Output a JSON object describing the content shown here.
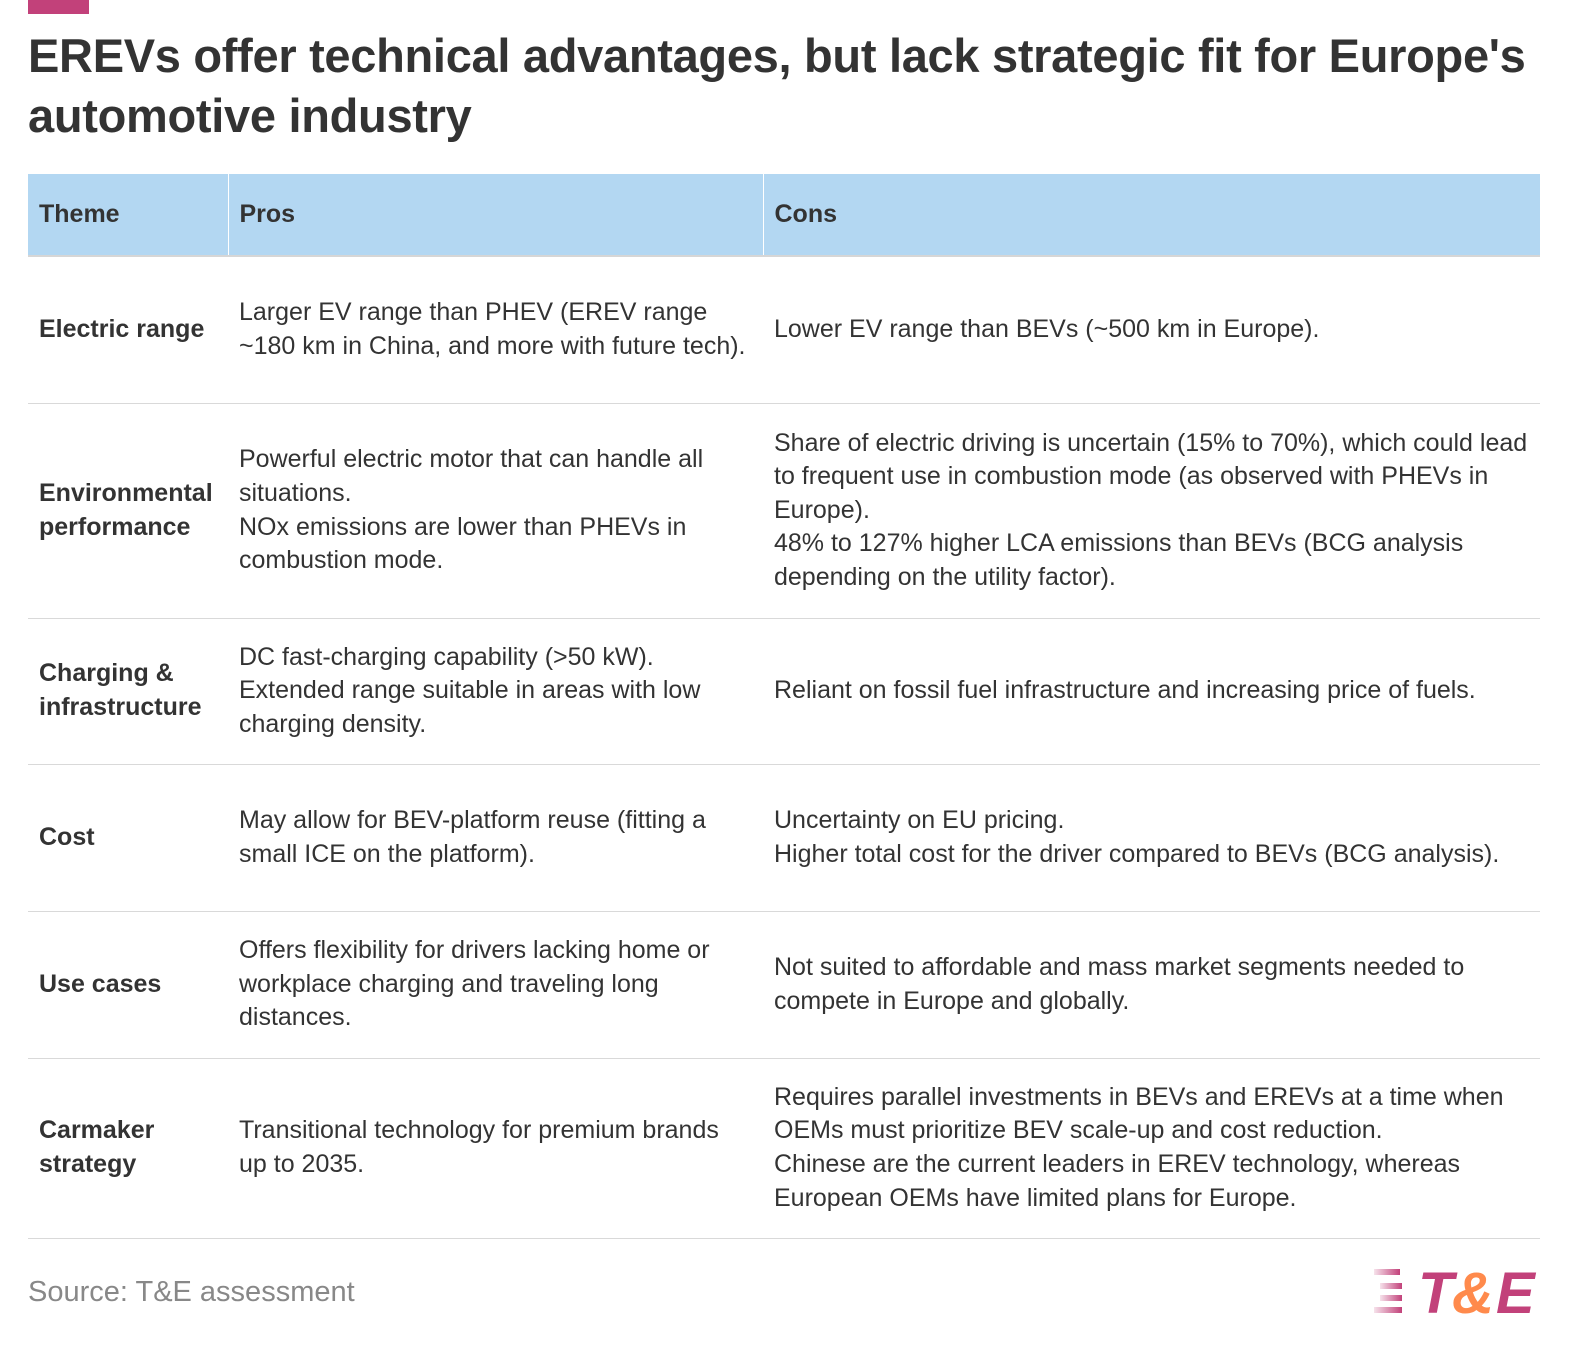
{
  "title": "EREVs offer technical advantages, but lack strategic fit for Europe's automotive industry",
  "source": "Source: T&E assessment",
  "logo_text": "T&E",
  "colors": {
    "accent": "#c2417a",
    "header_bg": "#b3d7f2",
    "logo_orange": "#ff8a4c"
  },
  "chart_data": {
    "type": "table",
    "columns": [
      "Theme",
      "Pros",
      "Cons"
    ],
    "rows": [
      {
        "theme": "Electric range",
        "pros": [
          "Larger EV range than PHEV (EREV range ~180 km in China, and more with future tech)."
        ],
        "cons": [
          "Lower EV range than BEVs (~500 km in Europe)."
        ]
      },
      {
        "theme": "Environmental performance",
        "pros": [
          "Powerful electric motor that can handle all situations.",
          "NOx emissions are lower than PHEVs in combustion mode."
        ],
        "cons": [
          "Share of electric driving is uncertain (15% to 70%), which could lead to frequent use in combustion mode (as observed with PHEVs in Europe).",
          "48% to 127% higher LCA emissions than BEVs (BCG analysis depending on the utility factor)."
        ]
      },
      {
        "theme": "Charging & infrastructure",
        "pros": [
          "DC fast-charging capability (>50 kW).",
          "Extended range suitable in areas with low charging density."
        ],
        "cons": [
          "Reliant on fossil fuel infrastructure and increasing price of fuels."
        ]
      },
      {
        "theme": "Cost",
        "pros": [
          "May allow for BEV-platform reuse (fitting a small ICE on the platform)."
        ],
        "cons": [
          "Uncertainty on EU pricing.",
          "Higher total cost for the driver compared to BEVs (BCG analysis)."
        ]
      },
      {
        "theme": "Use cases",
        "pros": [
          "Offers flexibility for drivers lacking home or workplace charging and traveling long distances."
        ],
        "cons": [
          "Not suited to affordable and mass market segments needed to compete in Europe and globally."
        ]
      },
      {
        "theme": "Carmaker strategy",
        "pros": [
          "Transitional technology for premium brands up to 2035."
        ],
        "cons": [
          "Requires parallel investments in BEVs and EREVs at a time when OEMs must prioritize BEV scale-up and cost reduction.",
          "Chinese are the current leaders in EREV technology, whereas European OEMs have limited plans for Europe."
        ]
      }
    ]
  }
}
